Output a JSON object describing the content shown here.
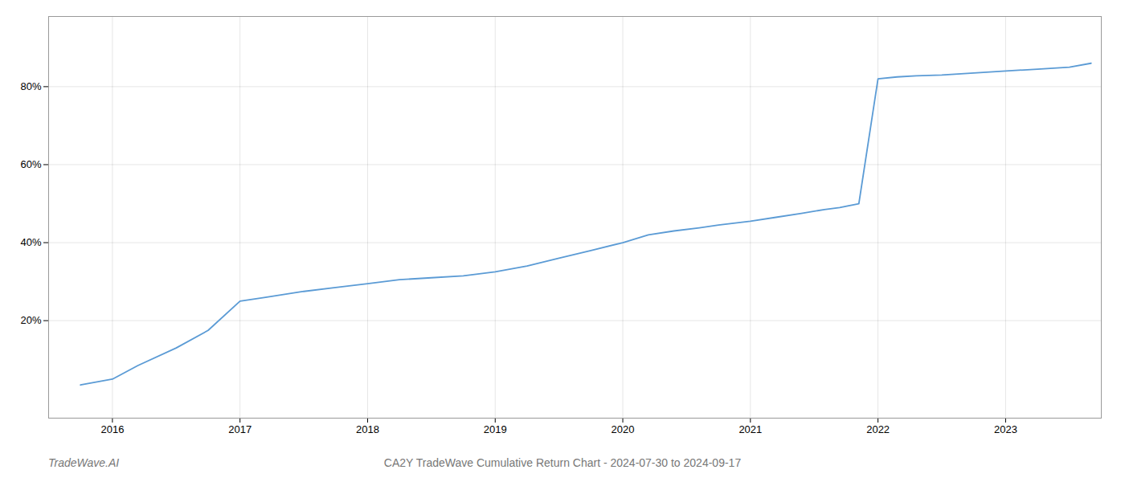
{
  "chart_data": {
    "type": "line",
    "title": "CA2Y TradeWave Cumulative Return Chart - 2024-07-30 to 2024-09-17",
    "annotations": [
      "TradeWave.AI"
    ],
    "color": "#5b9bd5",
    "x": [
      2015.75,
      2016.0,
      2016.2,
      2016.5,
      2016.75,
      2017.0,
      2017.2,
      2017.5,
      2017.75,
      2018.0,
      2018.25,
      2018.5,
      2018.75,
      2019.0,
      2019.25,
      2019.5,
      2019.75,
      2020.0,
      2020.2,
      2020.4,
      2020.6,
      2020.75,
      2021.0,
      2021.2,
      2021.4,
      2021.58,
      2021.7,
      2021.85,
      2022.0,
      2022.15,
      2022.3,
      2022.5,
      2022.75,
      2023.0,
      2023.25,
      2023.5,
      2023.67
    ],
    "values": [
      3.5,
      5.0,
      8.5,
      13.0,
      17.5,
      25.0,
      26.0,
      27.5,
      28.5,
      29.5,
      30.5,
      31.0,
      31.5,
      32.5,
      34.0,
      36.0,
      38.0,
      40.0,
      42.0,
      43.0,
      43.8,
      44.5,
      45.5,
      46.5,
      47.5,
      48.5,
      49.0,
      50.0,
      82.0,
      82.5,
      82.8,
      83.0,
      83.5,
      84.0,
      84.5,
      85.0,
      86.0
    ],
    "xlim": [
      2015.5,
      2023.75
    ],
    "ylim": [
      -5,
      98
    ],
    "xticks": [
      2016,
      2017,
      2018,
      2019,
      2020,
      2021,
      2022,
      2023
    ],
    "yticks": [
      {
        "value": 20,
        "label": "20%"
      },
      {
        "value": 40,
        "label": "40%"
      },
      {
        "value": 60,
        "label": "60%"
      },
      {
        "value": 80,
        "label": "80%"
      }
    ],
    "grid": true
  }
}
